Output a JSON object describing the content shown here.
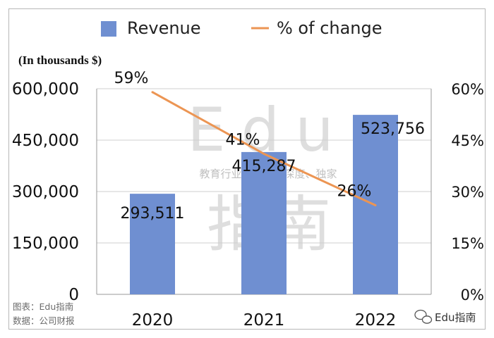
{
  "colors": {
    "bar": "#6f8fd1",
    "line": "#ec9553",
    "grid": "#cfcfcf",
    "axis": "#9a9a9a"
  },
  "chart_data": {
    "type": "bar",
    "categories": [
      "2020",
      "2021",
      "2022"
    ],
    "series": [
      {
        "name": "Revenue",
        "type": "bar",
        "axis": "left",
        "values": [
          293511,
          415287,
          523756
        ],
        "labels": [
          "293,511",
          "415,287",
          "523,756"
        ]
      },
      {
        "name": "% of change",
        "type": "line",
        "axis": "right",
        "values": [
          59,
          41,
          26
        ],
        "labels": [
          "59%",
          "41%",
          "26%"
        ]
      }
    ],
    "y_left": {
      "unit_label": "(In thousands $)",
      "ylim": [
        0,
        600000
      ],
      "ticks": [
        "0",
        "150,000",
        "300,000",
        "450,000",
        "600,000"
      ]
    },
    "y_right": {
      "ylim": [
        0,
        60
      ],
      "ticks": [
        "0%",
        "15%",
        "30%",
        "45%",
        "60%"
      ]
    },
    "grid": true,
    "legend": "top-center"
  },
  "watermark": {
    "latin": "Edu",
    "chinese": "指南",
    "tagline": "教育行业，前沿、深度、独家"
  },
  "source": {
    "line1": "图表：Edu指南",
    "line2": "数据：公司财报"
  },
  "brand": {
    "name": "Edu指南",
    "icon": "wechat-icon"
  }
}
